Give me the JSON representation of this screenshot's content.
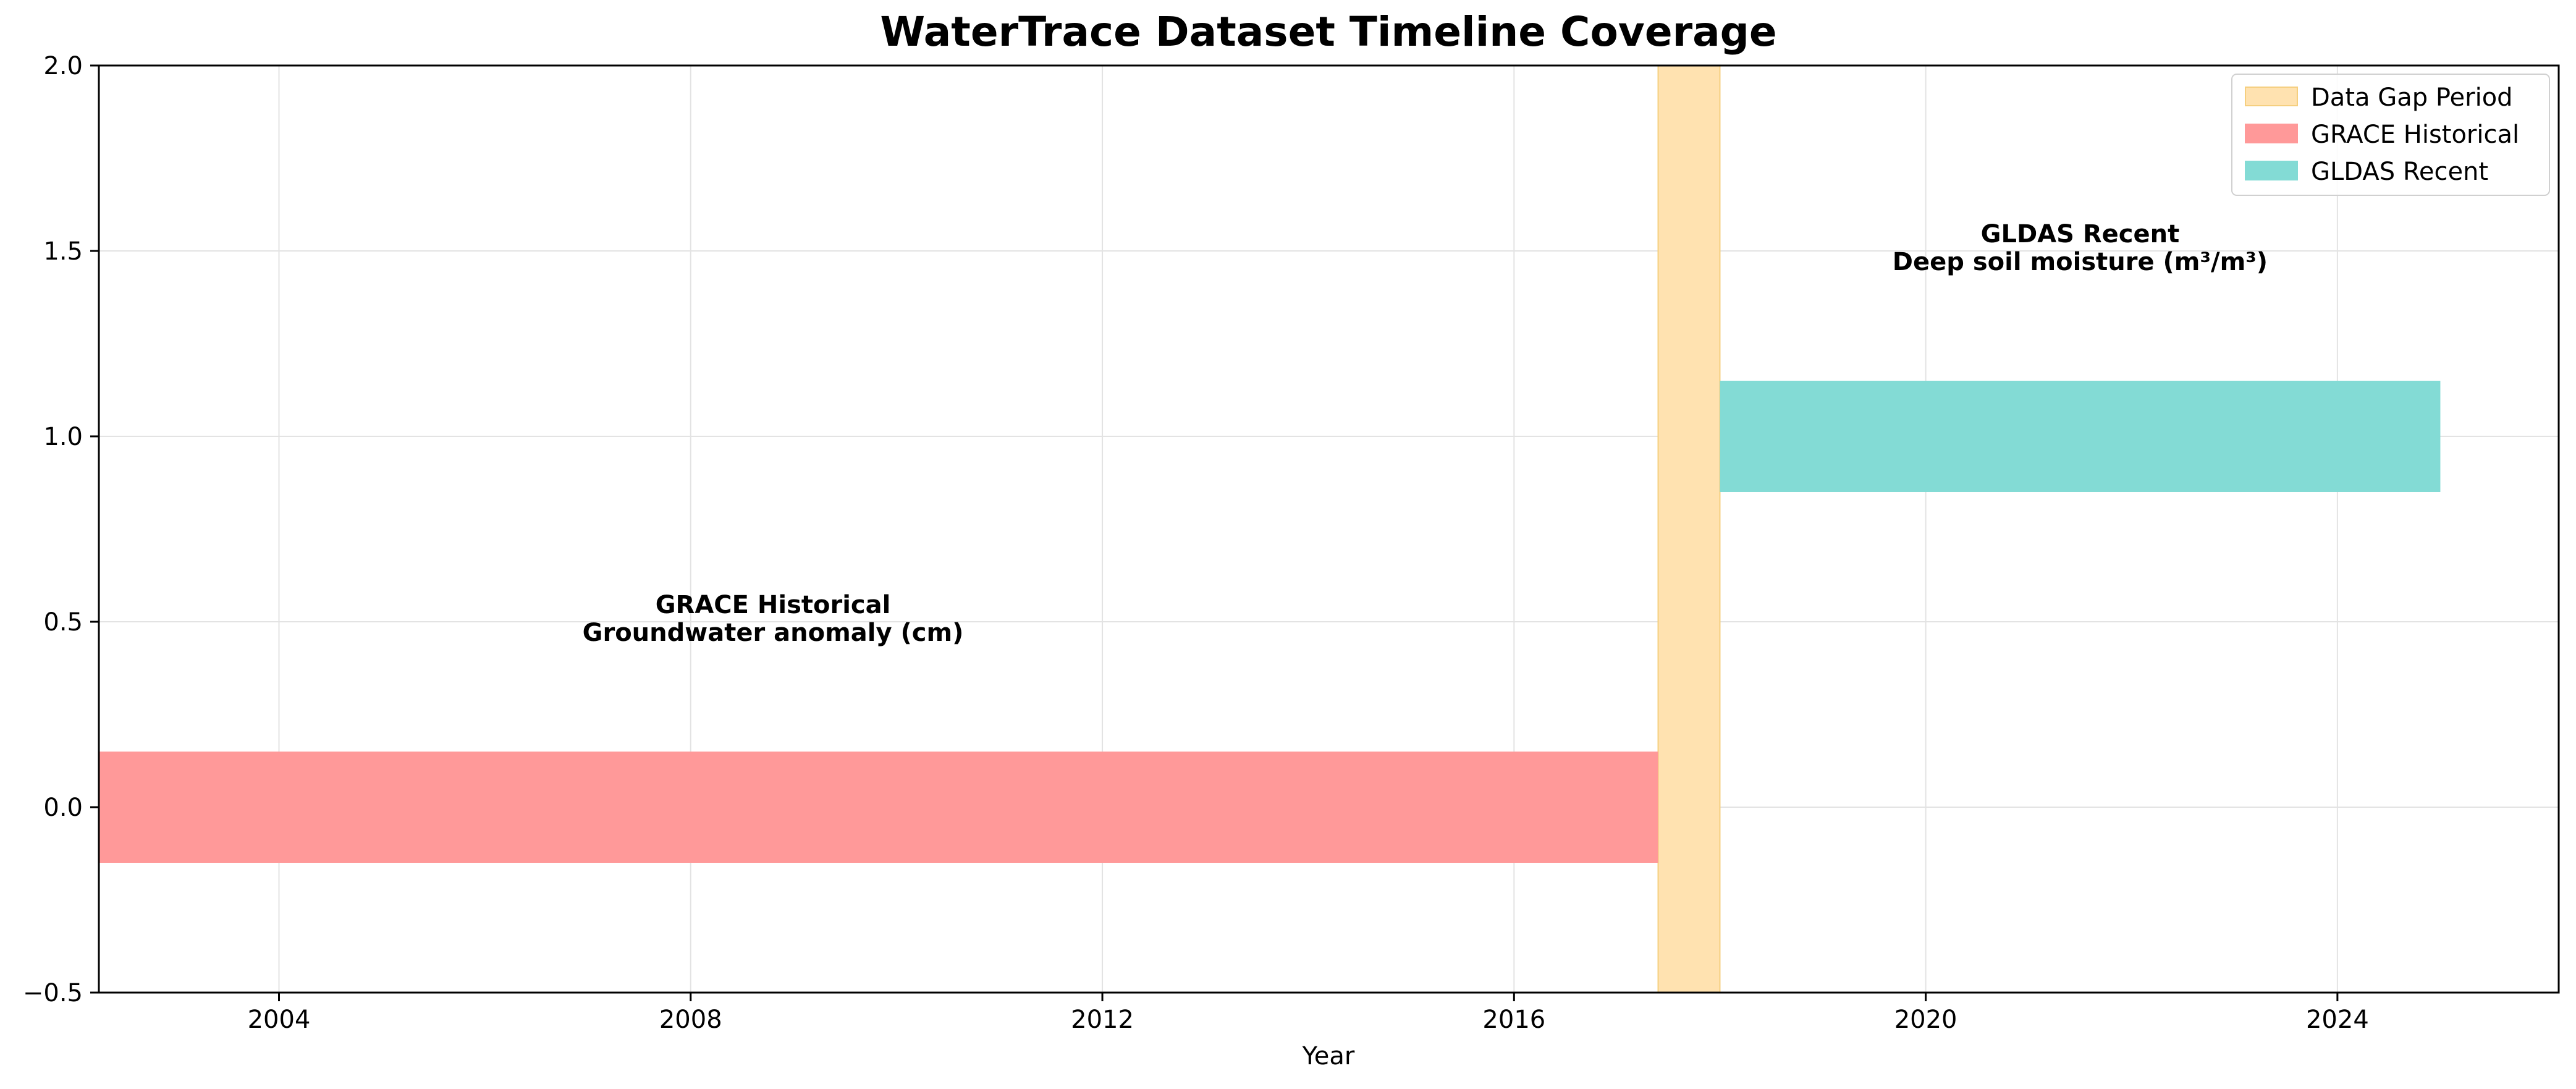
{
  "chart_data": {
    "type": "timeline",
    "title": "WaterTrace Dataset Timeline Coverage",
    "xlabel": "Year",
    "ylabel": "",
    "xlim": [
      2002.25,
      2026.15
    ],
    "ylim": [
      -0.5,
      2.0
    ],
    "x_ticks": [
      2004,
      2008,
      2012,
      2016,
      2020,
      2024
    ],
    "x_tick_labels": [
      "2004",
      "2008",
      "2012",
      "2016",
      "2020",
      "2024"
    ],
    "y_ticks": [
      -0.5,
      0.0,
      0.5,
      1.0,
      1.5,
      2.0
    ],
    "y_tick_labels": [
      "−0.5",
      "0.0",
      "0.5",
      "1.0",
      "1.5",
      "2.0"
    ],
    "grid": true,
    "legend_position": "top-right",
    "gap_span": {
      "name": "Data Gap Period",
      "start": 2017.4,
      "end": 2018.0,
      "color": "#ffe2b0",
      "edge": "#f5cf7f"
    },
    "series": [
      {
        "name": "GRACE Historical",
        "start": 2002.25,
        "end": 2017.4,
        "y_center": 0.0,
        "height": 0.3,
        "color": "#ff9999",
        "annotation": {
          "line1": "GRACE Historical",
          "line2": "Groundwater anomaly (cm)",
          "x": 2008.8,
          "y": 0.5
        }
      },
      {
        "name": "GLDAS Recent",
        "start": 2018.0,
        "end": 2025.0,
        "y_center": 1.0,
        "height": 0.3,
        "color": "#83dbd5",
        "annotation": {
          "line1": "GLDAS Recent",
          "line2": "Deep soil moisture (m³/m³)",
          "x": 2021.5,
          "y": 1.5
        }
      }
    ],
    "legend": [
      {
        "label": "Data Gap Period",
        "color": "#ffe2b0",
        "edge": "#f5cf7f"
      },
      {
        "label": "GRACE Historical",
        "color": "#ff9999",
        "edge": "#ff9999"
      },
      {
        "label": "GLDAS Recent",
        "color": "#83dbd5",
        "edge": "#83dbd5"
      }
    ]
  }
}
